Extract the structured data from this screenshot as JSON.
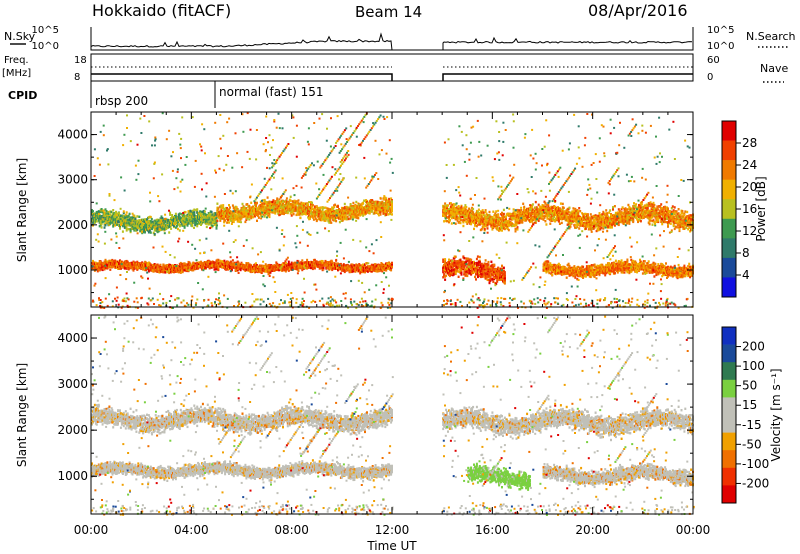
{
  "header": {
    "station": "Hokkaido (fitACF)",
    "beam": "Beam 14",
    "date": "08/Apr/2016"
  },
  "strip_labels": {
    "nsky": "N.Sky",
    "nsky_ticks": [
      "10^5",
      "10^0"
    ],
    "nsearch": "N.Search",
    "nsearch_ticks": [
      "10^5",
      "10^0"
    ],
    "freq_line1": "Freq.",
    "freq_line2": "[MHz]",
    "freq_ticks": [
      "18",
      "8"
    ],
    "nave": "Nave",
    "nave_ticks": [
      "60",
      "0"
    ],
    "cpid": "CPID",
    "cpid_modes": [
      "rbsp 200",
      "normal (fast) 151"
    ]
  },
  "colors": {
    "power_scale": [
      "#1010e0",
      "#1a4a9a",
      "#2f7a6a",
      "#3e9a50",
      "#b8c020",
      "#f0b000",
      "#f07a00",
      "#f04000",
      "#e00000"
    ],
    "velocity_scale": [
      "#1030c0",
      "#1a4a9a",
      "#2f7a50",
      "#7ad040",
      "#c0c0b8",
      "#c0c0b8",
      "#f0a000",
      "#f07000",
      "#f03000",
      "#e00000"
    ]
  },
  "chart_data": [
    {
      "type": "heatmap",
      "panel": "power",
      "ylabel": "Slant Range [km]",
      "yticks": [
        "1000",
        "2000",
        "3000",
        "4000"
      ],
      "ylim": [
        180,
        4500
      ],
      "xlim": [
        0,
        24
      ],
      "colorbar_label": "Power [dB]",
      "colorbar_ticks": [
        "4",
        "8",
        "12",
        "16",
        "20",
        "24",
        "28"
      ],
      "data_gap_hours": [
        12,
        14
      ],
      "bands": [
        {
          "t0": 0,
          "t1": 12,
          "range_center": 1100,
          "range_halfwidth": 130,
          "power_db": 26
        },
        {
          "t0": 0,
          "t1": 5,
          "range_center": 2100,
          "range_halfwidth": 250,
          "power_db": 15
        },
        {
          "t0": 5,
          "t1": 12,
          "range_center": 2350,
          "range_halfwidth": 250,
          "power_db": 22
        },
        {
          "t0": 14,
          "t1": 16.5,
          "range_center": 1000,
          "range_halfwidth": 300,
          "power_db": 27
        },
        {
          "t0": 14,
          "t1": 24,
          "range_center": 2200,
          "range_halfwidth": 300,
          "power_db": 23
        },
        {
          "t0": 18,
          "t1": 24,
          "range_center": 1050,
          "range_halfwidth": 180,
          "power_db": 24
        }
      ]
    },
    {
      "type": "heatmap",
      "panel": "velocity",
      "ylabel": "Slant Range [km]",
      "yticks": [
        "1000",
        "2000",
        "3000",
        "4000"
      ],
      "ylim": [
        180,
        4500
      ],
      "xlim": [
        0,
        24
      ],
      "xlabel": "Time UT",
      "xticks": [
        "00:00",
        "04:00",
        "08:00",
        "12:00",
        "16:00",
        "20:00",
        "00:00"
      ],
      "colorbar_label": "Velocity [m s⁻¹]",
      "colorbar_ticks": [
        "200",
        "100",
        "50",
        "15",
        "-15",
        "-50",
        "-100",
        "-200"
      ],
      "data_gap_hours": [
        12,
        14
      ],
      "bands": [
        {
          "t0": 0,
          "t1": 12,
          "range_center": 1150,
          "range_halfwidth": 180,
          "velocity": 0
        },
        {
          "t0": 0,
          "t1": 12,
          "range_center": 2250,
          "range_halfwidth": 280,
          "velocity": 0
        },
        {
          "t0": 15,
          "t1": 17.5,
          "range_center": 1000,
          "range_halfwidth": 250,
          "velocity": 40
        },
        {
          "t0": 14,
          "t1": 24,
          "range_center": 2200,
          "range_halfwidth": 300,
          "velocity": 0
        },
        {
          "t0": 18,
          "t1": 24,
          "range_center": 1050,
          "range_halfwidth": 220,
          "velocity": 0
        }
      ]
    }
  ]
}
